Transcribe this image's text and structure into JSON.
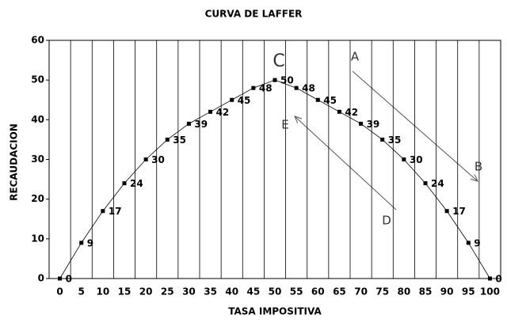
{
  "chart_data": {
    "type": "line",
    "title": "CURVA DE LAFFER",
    "x_label": "TASA IMPOSITIVA",
    "y_label": "RECAUDACION",
    "categories": [
      0,
      5,
      10,
      15,
      20,
      25,
      30,
      35,
      40,
      45,
      50,
      55,
      60,
      65,
      70,
      75,
      80,
      85,
      90,
      95,
      100
    ],
    "values": [
      0,
      9,
      17,
      24,
      30,
      35,
      39,
      42,
      45,
      48,
      50,
      48,
      45,
      42,
      39,
      35,
      30,
      24,
      17,
      9,
      0
    ],
    "color": "#000000",
    "ylim": [
      0,
      60
    ],
    "yticks": [
      0,
      10,
      20,
      30,
      40,
      50,
      60
    ],
    "annotations": [
      "C",
      "A",
      "B",
      "D",
      "E"
    ]
  }
}
